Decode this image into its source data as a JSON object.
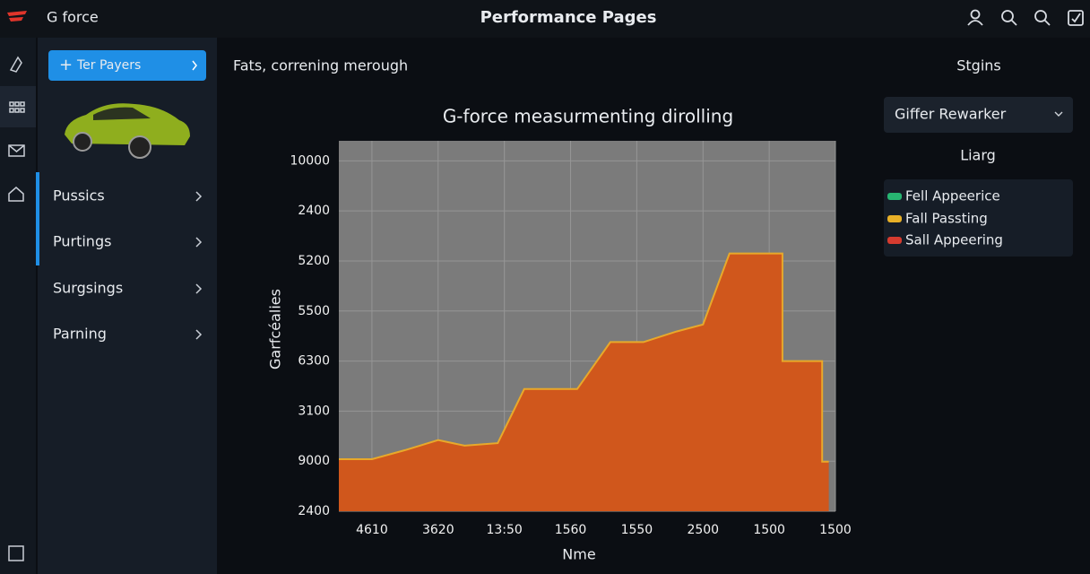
{
  "header": {
    "app_name": "G force",
    "title": "Performance Pages"
  },
  "sidebar": {
    "button": "Ter Payers",
    "nav": [
      "Pussics",
      "Purtings",
      "Surgsings",
      "Parning"
    ]
  },
  "main": {
    "heading": "Fats, correning merough"
  },
  "right_panel": {
    "title": "Stgins",
    "dropdown": "Giffer Rewarker",
    "legend_title": "Liarg",
    "legend_items": [
      {
        "label": "Fell Appeerice",
        "color": "#27b571"
      },
      {
        "label": "Fall Passting",
        "color": "#e8b027"
      },
      {
        "label": "Sall Appeering",
        "color": "#d63b2f"
      }
    ]
  },
  "chart_data": {
    "type": "area",
    "title": "G-force measurmenting dirolling",
    "x_label": "Nme",
    "y_label": "Garfcéalies",
    "x": [
      -0.5,
      0,
      0.5,
      1,
      1.4,
      1.9,
      2.3,
      3.1,
      3.6,
      4.1,
      4.6,
      5,
      5.4,
      6.2,
      6.2,
      6.8,
      6.8,
      6.9
    ],
    "values": [
      1.04,
      1.04,
      1.22,
      1.42,
      1.31,
      1.36,
      2.44,
      2.44,
      3.38,
      3.38,
      3.59,
      3.73,
      5.15,
      5.15,
      3,
      3,
      0.99,
      0.99
    ],
    "color": "#e8a92a",
    "fill": "#d0571c",
    "xlim": [
      -0.5,
      7
    ],
    "ylim": [
      0,
      7.4
    ],
    "xticks": [
      {
        "value": 0,
        "label": "4610"
      },
      {
        "value": 1,
        "label": "3620"
      },
      {
        "value": 2,
        "label": "13:50"
      },
      {
        "value": 3,
        "label": "1560"
      },
      {
        "value": 4,
        "label": "1550"
      },
      {
        "value": 5,
        "label": "2500"
      },
      {
        "value": 6,
        "label": "1500"
      },
      {
        "value": 7,
        "label": "1500"
      }
    ],
    "yticks": [
      {
        "value": 0,
        "label": "2400"
      },
      {
        "value": 1,
        "label": "9000"
      },
      {
        "value": 2,
        "label": "3100"
      },
      {
        "value": 3,
        "label": "6300"
      },
      {
        "value": 4,
        "label": "5500"
      },
      {
        "value": 5,
        "label": "5200"
      },
      {
        "value": 6,
        "label": "2400"
      },
      {
        "value": 7,
        "label": "10000"
      }
    ],
    "grid": true
  }
}
